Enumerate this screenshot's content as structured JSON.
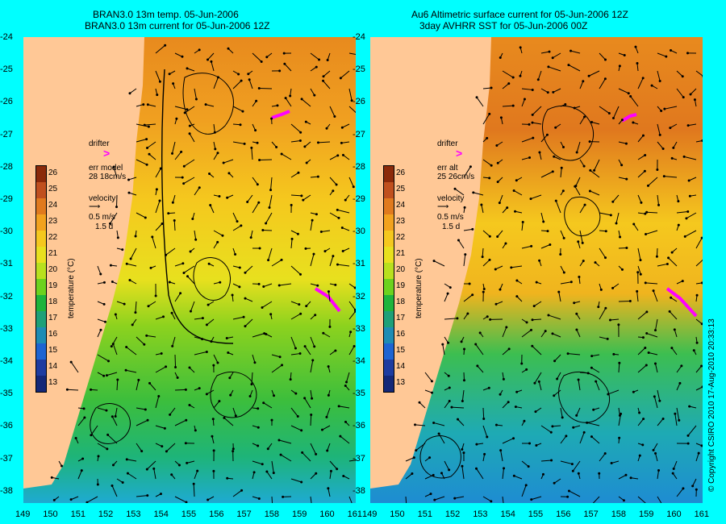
{
  "left_panel": {
    "title_line1": "BRAN3.0 13m temp. 05-Jun-2006",
    "title_line2": "BRAN3.0 13m current for 05-Jun-2006 12Z",
    "drifter_label": "drifter",
    "err_label": "err model",
    "err_value": "28 18cm/s",
    "velocity_label": "velocity",
    "velocity_scale": "0.5 m/s",
    "velocity_time": "1.5 d"
  },
  "right_panel": {
    "title_line1": "Au6 Altimetric surface current for 05-Jun-2006 12Z",
    "title_line2": "3day AVHRR SST for 05-Jun-2006 00Z",
    "drifter_label": "drifter",
    "err_label": "err alt",
    "err_value": "25 26cm/s",
    "velocity_label": "velocity",
    "velocity_scale": "0.5 m/s",
    "velocity_time": "1.5 d"
  },
  "colorbar": {
    "label": "temperature (°C)",
    "ticks": [
      "26",
      "25",
      "24",
      "23",
      "22",
      "21",
      "20",
      "19",
      "18",
      "17",
      "16",
      "15",
      "14",
      "13"
    ],
    "colors": [
      "#8b2a0a",
      "#c0501e",
      "#e07a1e",
      "#f2a21e",
      "#f5c81e",
      "#e8e01e",
      "#b8e01e",
      "#6cd21e",
      "#1eb43c",
      "#1ea078",
      "#1e8cb4",
      "#1e64d2",
      "#1e3ca0",
      "#142878"
    ]
  },
  "lat_ticks": [
    "-24",
    "-25",
    "-26",
    "-27",
    "-28",
    "-29",
    "-30",
    "-31",
    "-32",
    "-33",
    "-34",
    "-35",
    "-36",
    "-37",
    "-38"
  ],
  "lon_ticks": [
    "149",
    "150",
    "151",
    "152",
    "153",
    "154",
    "155",
    "156",
    "157",
    "158",
    "159",
    "160",
    "161"
  ],
  "copyright": "© Copyright CSIRO 2010 17-Aug-2010 20:33:13",
  "colors": {
    "land": "#ffc896",
    "background": "#00ffff",
    "drifter": "#ff00ff"
  }
}
